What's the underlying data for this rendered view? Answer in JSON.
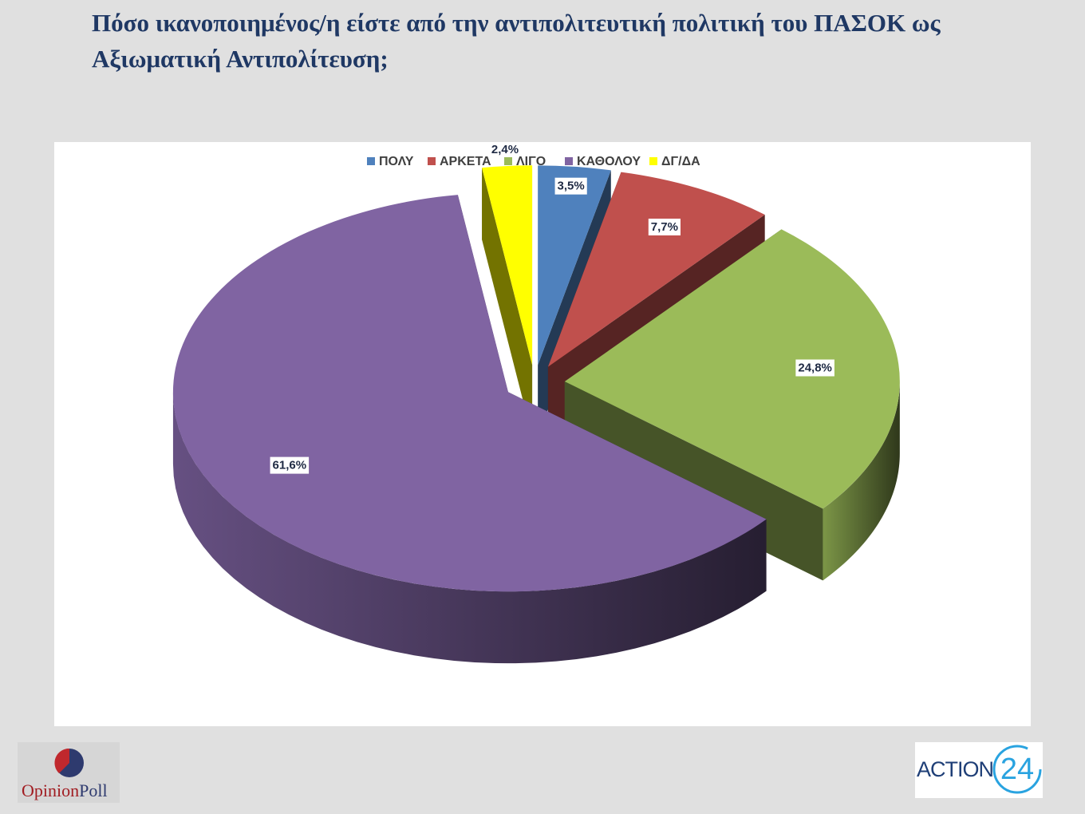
{
  "chart_data": {
    "type": "pie3d",
    "title": "Πόσο ικανοποιημένος/η είστε από την αντιπολιτευτική πολιτική του ΠΑΣΟΚ ως Αξιωματική Αντιπολίτευση;",
    "categories": [
      "ΠΟΛΥ",
      "ΑΡΚΕΤΑ",
      "ΛΙΓΟ",
      "ΚΑΘΟΛΟΥ",
      "ΔΓ/ΔΑ"
    ],
    "values": [
      3.5,
      7.7,
      24.8,
      61.6,
      2.4
    ],
    "value_labels": [
      "3,5%",
      "7,7%",
      "24,8%",
      "61,6%",
      "2,4%"
    ],
    "colors": [
      "#4f81bd",
      "#c0504d",
      "#9bbb59",
      "#8064a2",
      "#ffff00"
    ],
    "legend": "top"
  },
  "footer": {
    "left_logo": [
      "Opinion",
      "Poll"
    ],
    "right_logo": [
      "ACTION",
      "24"
    ]
  }
}
